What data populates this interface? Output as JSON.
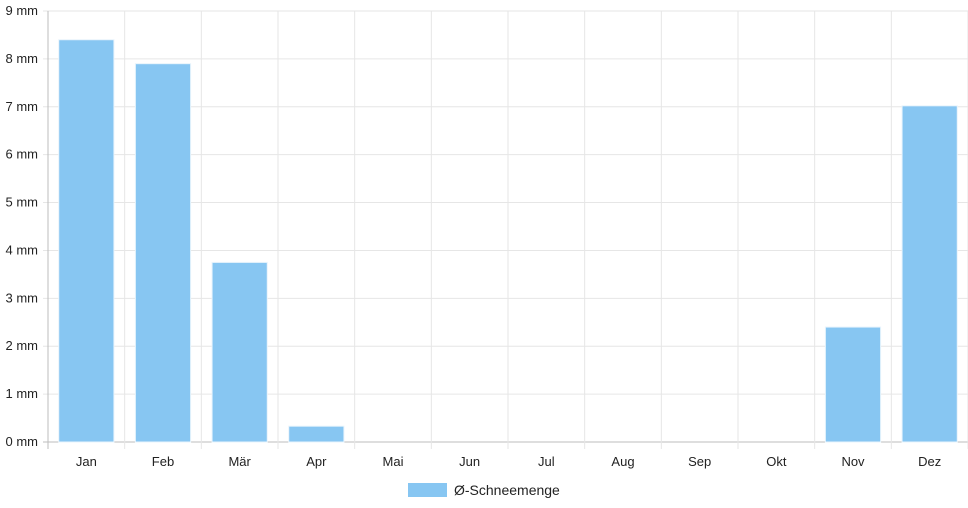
{
  "chart_data": {
    "type": "bar",
    "categories": [
      "Jan",
      "Feb",
      "Mär",
      "Apr",
      "Mai",
      "Jun",
      "Jul",
      "Aug",
      "Sep",
      "Okt",
      "Nov",
      "Dez"
    ],
    "series": [
      {
        "name": "Ø-Schneemenge",
        "values": [
          8.4,
          7.9,
          3.75,
          0.33,
          0,
          0,
          0,
          0,
          0,
          0,
          2.4,
          7.02
        ]
      }
    ],
    "y_unit": "mm",
    "ylim": [
      0,
      9
    ],
    "y_ticks": [
      "0 mm",
      "1 mm",
      "2 mm",
      "3 mm",
      "4 mm",
      "5 mm",
      "6 mm",
      "7 mm",
      "8 mm",
      "9 mm"
    ],
    "grid": true,
    "legend_position": "bottom",
    "colors": {
      "bar_fill": "#87c6f2",
      "bar_stroke": "#e8f4fc",
      "grid": "#e6e6e6",
      "axis": "#bdbdbd"
    }
  }
}
